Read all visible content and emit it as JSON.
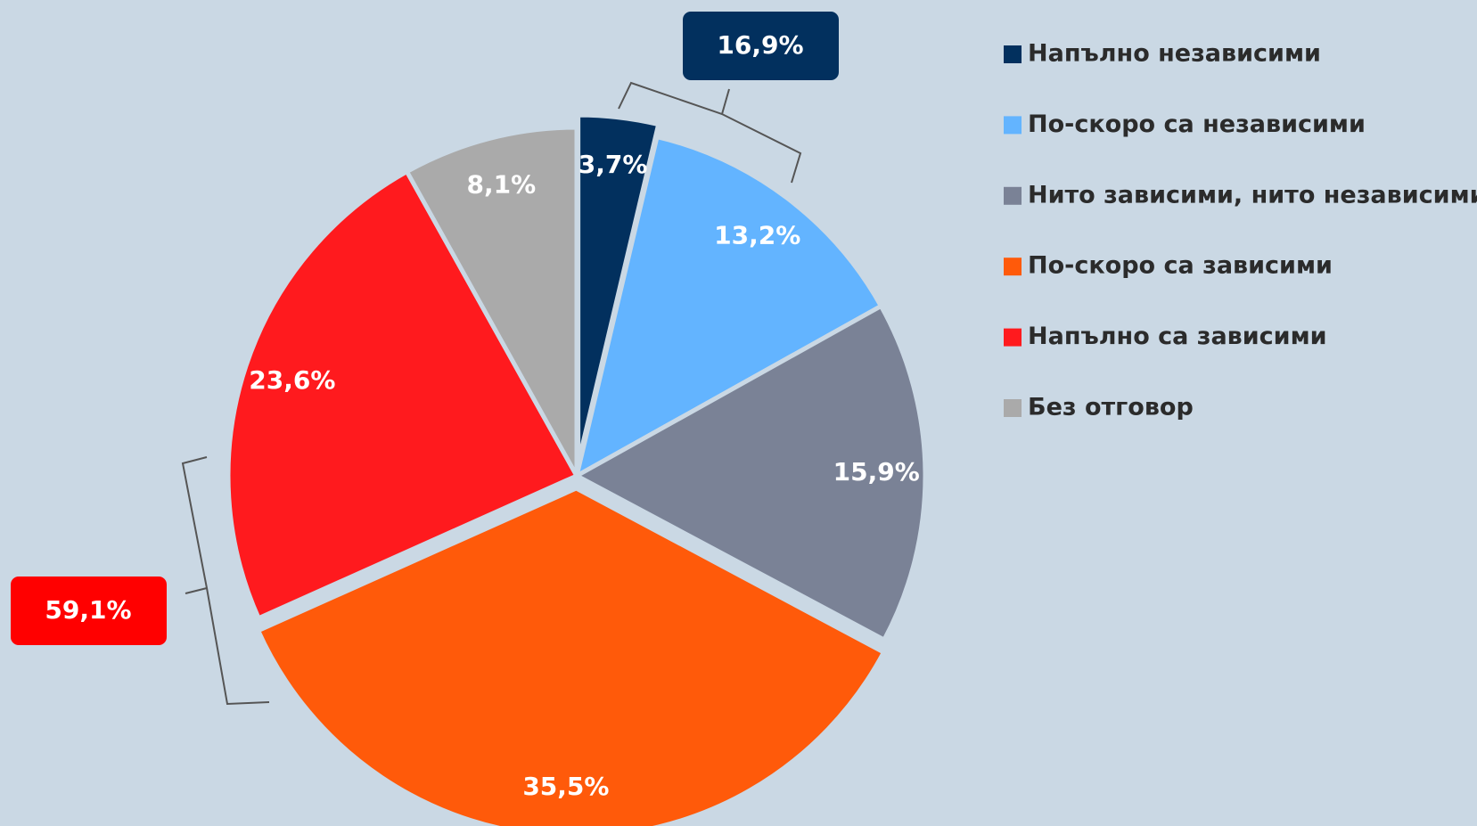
{
  "chart_data": {
    "type": "pie",
    "categories": [
      "Напълно независими",
      "По-скоро са независими",
      "Нито зависими, нито независими",
      "По-скоро са зависими",
      "Напълно са зависими",
      "Без отговор"
    ],
    "values": [
      3.7,
      13.2,
      15.9,
      35.5,
      23.6,
      8.1
    ],
    "value_labels": [
      "3,7%",
      "13,2%",
      "15,9%",
      "35,5%",
      "23,6%",
      "8,1%"
    ],
    "colors": [
      "#02305e",
      "#63b4ff",
      "#7a8296",
      "#ff5a0a",
      "#ff1a1e",
      "#aaaaaa"
    ],
    "legend": "right",
    "annotations": [
      "16,9%",
      "59,1%"
    ]
  }
}
